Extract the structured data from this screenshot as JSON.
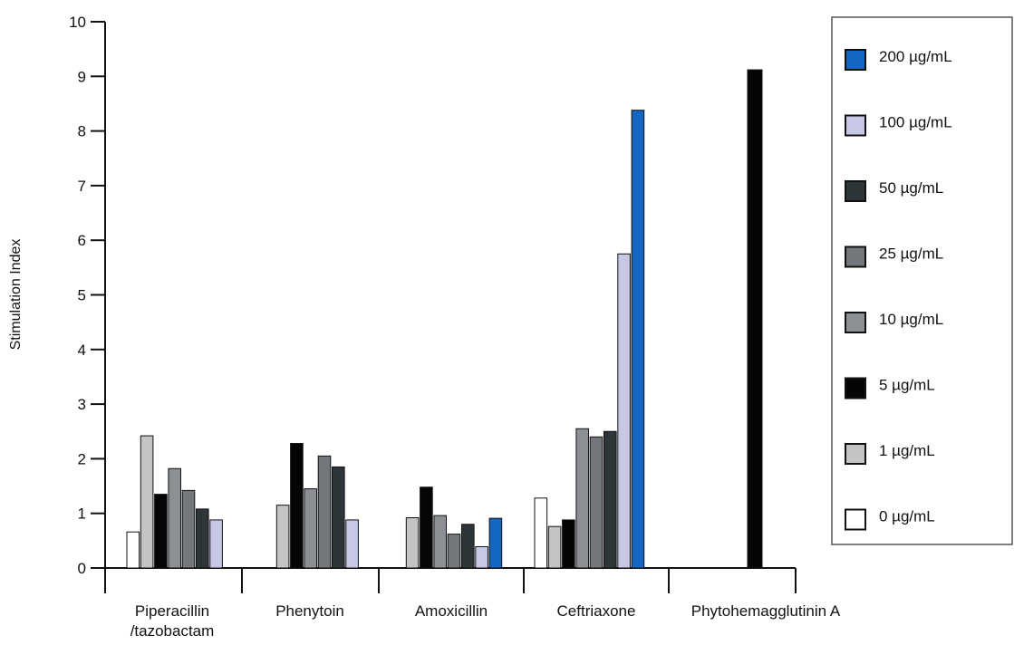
{
  "chart_data": {
    "type": "bar",
    "ylabel": "Stimulation Index",
    "xlabel": "",
    "title": "",
    "ylim": [
      0,
      10
    ],
    "yticks": [
      0,
      1,
      2,
      3,
      4,
      5,
      6,
      7,
      8,
      9,
      10
    ],
    "grid": false,
    "legend_position": "right",
    "categories": [
      {
        "label": [
          "Piperacillin",
          "/tazobactam"
        ]
      },
      {
        "label": [
          "Phenytoin"
        ]
      },
      {
        "label": [
          "Amoxicillin"
        ]
      },
      {
        "label": [
          "Ceftriaxone"
        ]
      },
      {
        "label": [
          "Phytohemagglutinin A"
        ]
      }
    ],
    "series": [
      {
        "name": "0 µg/mL",
        "color": "#ffffff",
        "values": [
          0.66,
          null,
          null,
          1.28,
          null
        ]
      },
      {
        "name": "1 µg/mL",
        "color": "#c4c4c4",
        "values": [
          2.42,
          1.15,
          0.92,
          0.76,
          null
        ]
      },
      {
        "name": "5 µg/mL",
        "color": "#050505",
        "values": [
          1.35,
          2.28,
          1.48,
          0.88,
          9.12
        ]
      },
      {
        "name": "10 µg/mL",
        "color": "#8c8f94",
        "values": [
          1.82,
          1.45,
          0.96,
          2.55,
          null
        ]
      },
      {
        "name": "25 µg/mL",
        "color": "#74777b",
        "values": [
          1.42,
          2.05,
          0.62,
          2.4,
          null
        ]
      },
      {
        "name": "50 µg/mL",
        "color": "#2e3538",
        "values": [
          1.08,
          1.85,
          0.8,
          2.5,
          null
        ]
      },
      {
        "name": "100 µg/mL",
        "color": "#c6c8e6",
        "values": [
          0.88,
          0.88,
          0.39,
          5.75,
          null
        ]
      },
      {
        "name": "200 µg/mL",
        "color": "#1566c0",
        "values": [
          null,
          null,
          0.91,
          8.38,
          null
        ]
      }
    ],
    "legend_order": [
      7,
      6,
      5,
      4,
      3,
      2,
      1,
      0
    ]
  }
}
